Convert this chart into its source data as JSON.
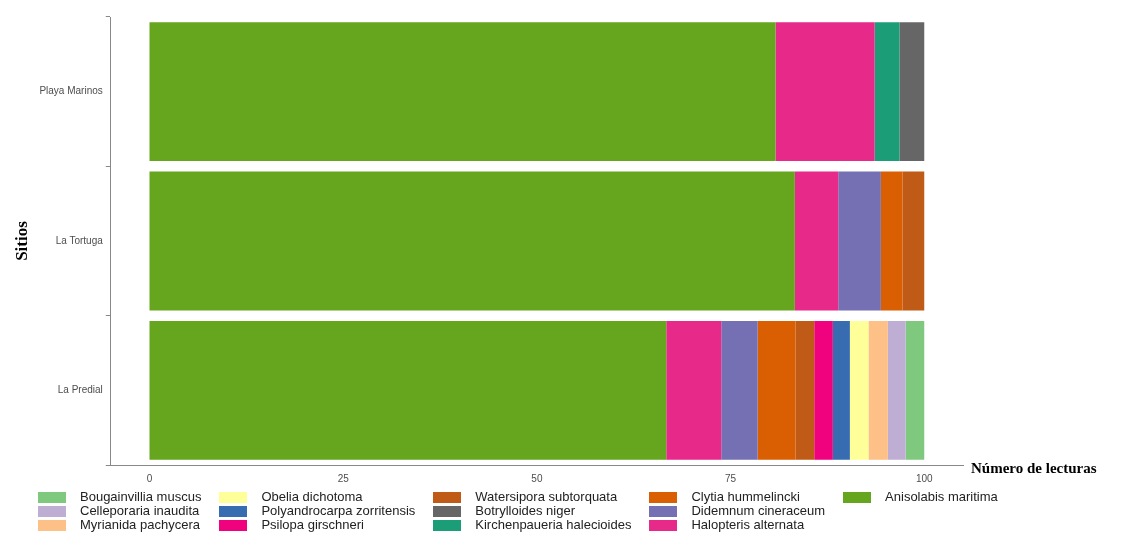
{
  "chart_data": {
    "type": "bar",
    "orientation": "horizontal",
    "stacked": true,
    "xlabel": "Número de lecturas",
    "ylabel": "Sitios",
    "categories": [
      "Playa Marinos",
      "La Tortuga",
      "La Predial"
    ],
    "xlim": [
      -5,
      105
    ],
    "xticks": [
      0,
      25,
      50,
      75,
      100
    ],
    "grid": false,
    "legend": "bottom",
    "series": [
      {
        "name": "Anisolabis maritima",
        "color": "#66a61e",
        "values": [
          80.8,
          83.3,
          66.7
        ]
      },
      {
        "name": "Halopteris alternata",
        "color": "#e7298a",
        "values": [
          12.8,
          5.6,
          7.1
        ]
      },
      {
        "name": "Didemnum cineraceum",
        "color": "#7570b3",
        "values": [
          null,
          5.5,
          4.7
        ]
      },
      {
        "name": "Clytia hummelincki",
        "color": "#d95f02",
        "values": [
          null,
          2.8,
          4.9
        ]
      },
      {
        "name": "Kirchenpaueria halecioides",
        "color": "#1b9e77",
        "values": [
          3.2,
          null,
          null
        ]
      },
      {
        "name": "Botrylloides niger",
        "color": "#666666",
        "values": [
          3.2,
          null,
          null
        ]
      },
      {
        "name": "Watersipora subtorquata",
        "color": "#bf5b17",
        "values": [
          null,
          2.8,
          2.4
        ]
      },
      {
        "name": "Psilopa girschneri",
        "color": "#f0027f",
        "values": [
          null,
          null,
          2.4
        ]
      },
      {
        "name": "Polyandrocarpa zorritensis",
        "color": "#386cb0",
        "values": [
          null,
          null,
          2.2
        ]
      },
      {
        "name": "Obelia dichotoma",
        "color": "#ffff99",
        "values": [
          null,
          null,
          2.4
        ]
      },
      {
        "name": "Myrianida pachycera",
        "color": "#fdc086",
        "values": [
          null,
          null,
          2.5
        ]
      },
      {
        "name": "Celleporaria inaudita",
        "color": "#beaed4",
        "values": [
          null,
          null,
          2.3
        ]
      },
      {
        "name": "Bougainvillia muscus",
        "color": "#7fc97f",
        "values": [
          null,
          null,
          2.4
        ]
      }
    ]
  }
}
